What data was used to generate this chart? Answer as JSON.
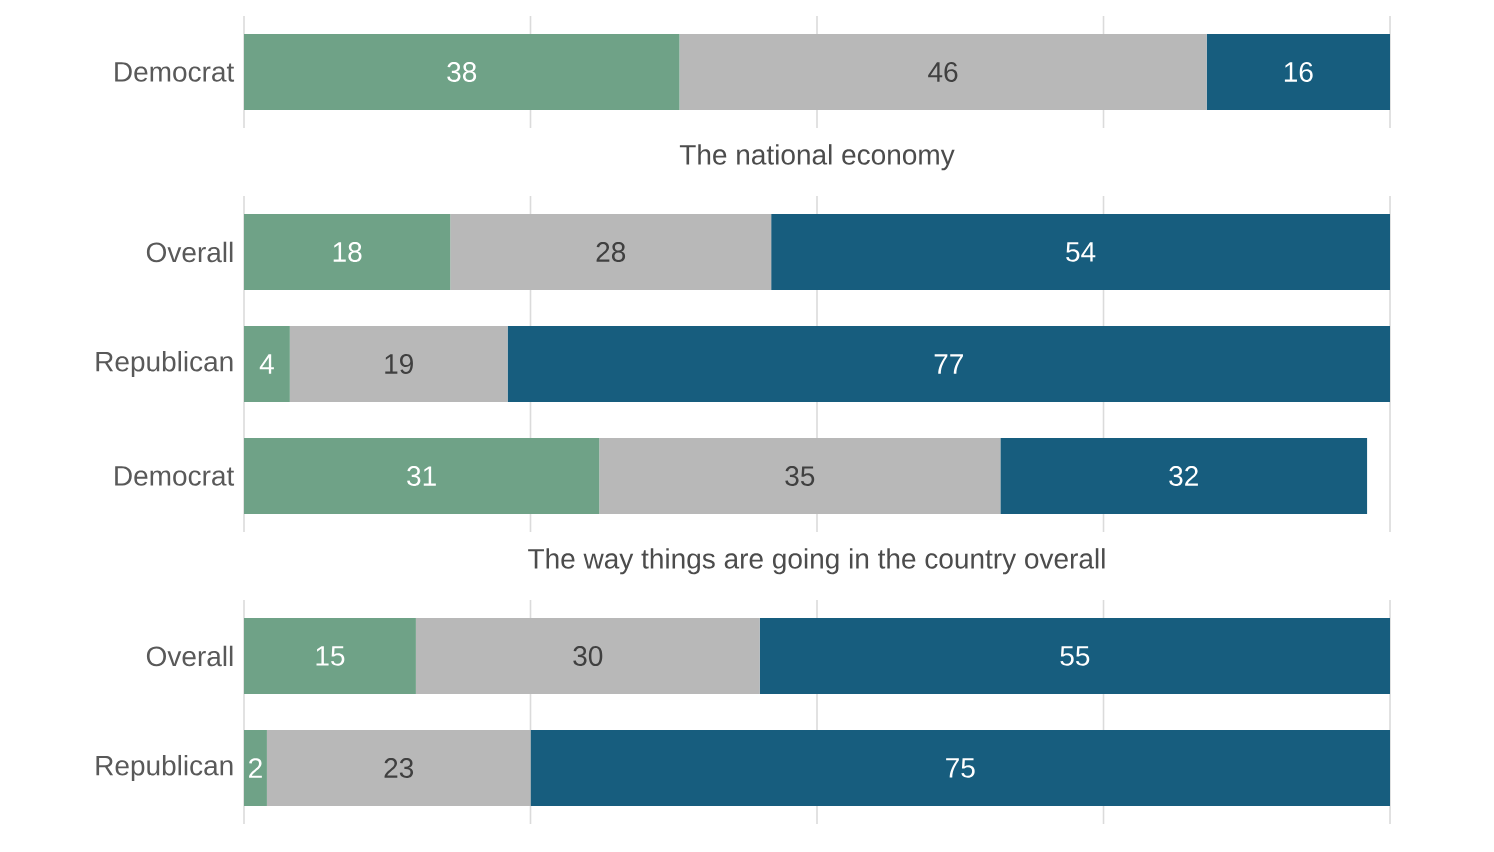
{
  "chart_data": [
    {
      "type": "bar",
      "orientation": "horizontal",
      "stacked": true,
      "categories": [
        "Democrat"
      ],
      "series": [
        {
          "color": "#6fa287",
          "values": [
            38
          ]
        },
        {
          "color": "#b8b8b8",
          "values": [
            46
          ]
        },
        {
          "color": "#175d7e",
          "values": [
            16
          ]
        }
      ],
      "xlim": [
        0,
        100
      ],
      "xticks": [
        {
          "value": 0,
          "label": null
        },
        {
          "value": 25,
          "label": null
        },
        {
          "value": 50,
          "label": null
        },
        {
          "value": 75,
          "label": null
        },
        {
          "value": 100,
          "label": null
        }
      ],
      "grid": "x",
      "tick_labels": "y",
      "data_labels": true
    },
    {
      "type": "bar",
      "orientation": "horizontal",
      "stacked": true,
      "title": "The national economy",
      "categories": [
        "Overall",
        "Republican",
        "Democrat"
      ],
      "series": [
        {
          "color": "#6fa287",
          "values": [
            18,
            4,
            31
          ]
        },
        {
          "color": "#b8b8b8",
          "values": [
            28,
            19,
            35
          ]
        },
        {
          "color": "#175d7e",
          "values": [
            54,
            77,
            32
          ]
        }
      ],
      "xlim": [
        0,
        100
      ],
      "xticks": [
        {
          "value": 0,
          "label": null
        },
        {
          "value": 25,
          "label": null
        },
        {
          "value": 50,
          "label": null
        },
        {
          "value": 75,
          "label": null
        },
        {
          "value": 100,
          "label": null
        }
      ],
      "grid": "x",
      "tick_labels": "y",
      "data_labels": true
    },
    {
      "type": "bar",
      "orientation": "horizontal",
      "stacked": true,
      "title": "The way things are going in the country overall",
      "categories": [
        "Overall",
        "Republican"
      ],
      "series": [
        {
          "color": "#6fa287",
          "values": [
            15,
            2
          ]
        },
        {
          "color": "#b8b8b8",
          "values": [
            30,
            23
          ]
        },
        {
          "color": "#175d7e",
          "values": [
            55,
            75
          ]
        }
      ],
      "xlim": [
        0,
        100
      ],
      "xticks": [
        {
          "value": 0,
          "label": null
        },
        {
          "value": 25,
          "label": null
        },
        {
          "value": 50,
          "label": null
        },
        {
          "value": 75,
          "label": null
        },
        {
          "value": 100,
          "label": null
        }
      ],
      "grid": "x",
      "tick_labels": "y",
      "data_labels": true
    }
  ]
}
